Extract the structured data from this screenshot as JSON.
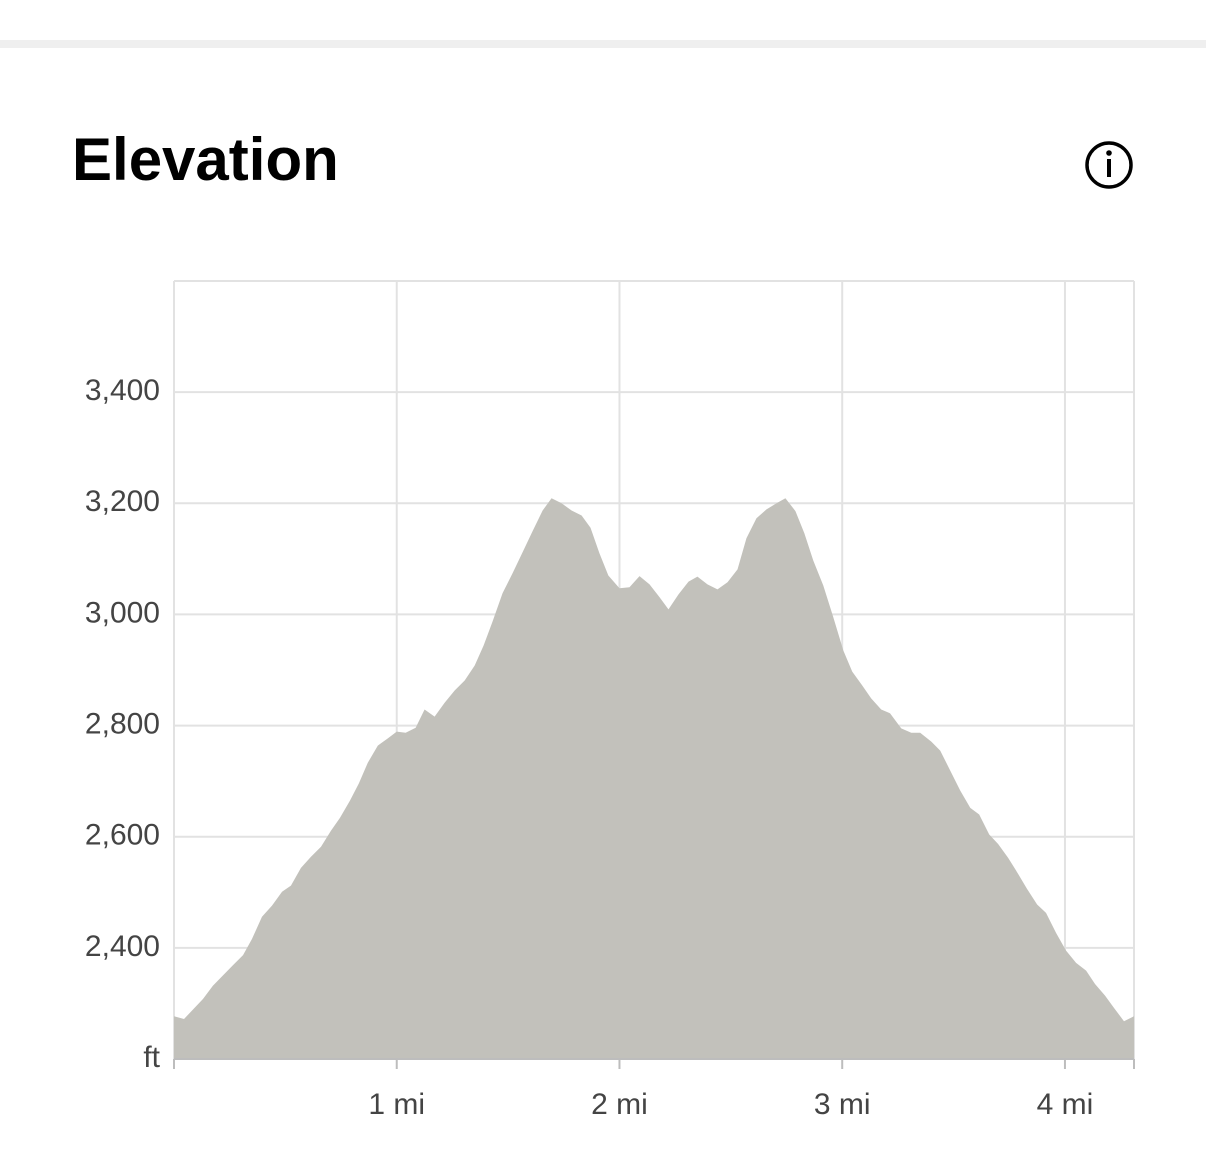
{
  "chart_data": {
    "type": "area",
    "title": "Elevation",
    "color": "#c2c1bb",
    "grid": true,
    "x": [
      0,
      0.045,
      0.13,
      0.175,
      0.265,
      0.31,
      0.35,
      0.395,
      0.44,
      0.485,
      0.525,
      0.57,
      0.615,
      0.66,
      0.705,
      0.745,
      0.79,
      0.83,
      0.87,
      0.915,
      0.96,
      1.0,
      1.04,
      1.085,
      1.125,
      1.17,
      1.215,
      1.26,
      1.305,
      1.35,
      1.39,
      1.43,
      1.475,
      1.52,
      1.565,
      1.61,
      1.655,
      1.695,
      1.74,
      1.785,
      1.83,
      1.87,
      1.91,
      1.95,
      2.0,
      2.045,
      2.09,
      2.135,
      2.18,
      2.22,
      2.265,
      2.31,
      2.35,
      2.395,
      2.44,
      2.485,
      2.53,
      2.57,
      2.615,
      2.66,
      2.705,
      2.745,
      2.79,
      2.83,
      2.87,
      2.915,
      2.96,
      3.005,
      3.045,
      3.09,
      3.13,
      3.175,
      3.215,
      3.265,
      3.31,
      3.35,
      3.4,
      3.44,
      3.485,
      3.53,
      3.575,
      3.615,
      3.66,
      3.7,
      3.745,
      3.79,
      3.83,
      3.875,
      3.915,
      3.96,
      4.005,
      4.05,
      4.095,
      4.135,
      4.18,
      4.22,
      4.265,
      4.31
    ],
    "values": [
      2277,
      2272,
      2308,
      2332,
      2369,
      2387,
      2416,
      2456,
      2476,
      2501,
      2512,
      2544,
      2564,
      2582,
      2611,
      2634,
      2665,
      2696,
      2733,
      2764,
      2777,
      2789,
      2787,
      2796,
      2829,
      2816,
      2841,
      2863,
      2881,
      2908,
      2944,
      2987,
      3038,
      3074,
      3112,
      3150,
      3187,
      3209,
      3200,
      3187,
      3178,
      3156,
      3110,
      3070,
      3047,
      3049,
      3069,
      3054,
      3031,
      3009,
      3036,
      3059,
      3068,
      3054,
      3045,
      3058,
      3081,
      3137,
      3173,
      3189,
      3200,
      3209,
      3186,
      3146,
      3097,
      3052,
      2995,
      2935,
      2897,
      2872,
      2849,
      2829,
      2822,
      2795,
      2787,
      2787,
      2771,
      2755,
      2719,
      2683,
      2652,
      2640,
      2604,
      2587,
      2562,
      2533,
      2506,
      2478,
      2463,
      2427,
      2395,
      2373,
      2359,
      2335,
      2314,
      2292,
      2268,
      2277
    ],
    "xlim": [
      0,
      4.31
    ],
    "xticks": [
      {
        "value": 1,
        "label": "1 mi"
      },
      {
        "value": 2,
        "label": "2 mi"
      },
      {
        "value": 3,
        "label": "3 mi"
      },
      {
        "value": 4,
        "label": "4 mi"
      }
    ],
    "ylim": [
      2200,
      3600
    ],
    "yticks": [
      {
        "value": 2200,
        "label": "ft"
      },
      {
        "value": 2400,
        "label": "2,400"
      },
      {
        "value": 2600,
        "label": "2,600"
      },
      {
        "value": 2800,
        "label": "2,800"
      },
      {
        "value": 3000,
        "label": "3,000"
      },
      {
        "value": 3200,
        "label": "3,200"
      },
      {
        "value": 3400,
        "label": "3,400"
      }
    ]
  }
}
